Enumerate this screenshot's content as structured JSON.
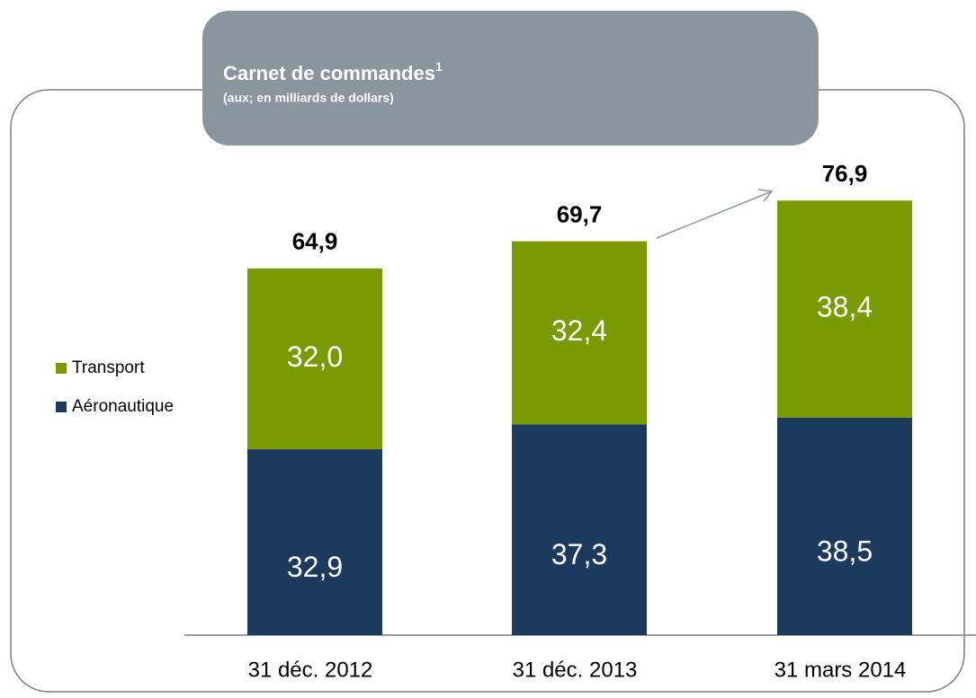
{
  "chart_data": {
    "type": "stacked_bar",
    "title": "Carnet de commandes",
    "title_note": "1",
    "subtitle": "(aux; en milliards de dollars)",
    "categories": [
      "31 déc. 2012",
      "31 déc. 2013",
      "31 mars 2014"
    ],
    "series": [
      {
        "name": "Aéronautique",
        "color": "#1b3a5e",
        "values": [
          32.9,
          37.3,
          38.5
        ],
        "value_labels": [
          "32,9",
          "37,3",
          "38,5"
        ]
      },
      {
        "name": "Transport",
        "color": "#7a9a01",
        "values": [
          32.0,
          32.4,
          38.4
        ],
        "value_labels": [
          "32,0",
          "32,4",
          "38,4"
        ]
      }
    ],
    "totals": [
      64.9,
      69.7,
      76.9
    ],
    "total_labels": [
      "64,9",
      "69,7",
      "76,9"
    ]
  }
}
